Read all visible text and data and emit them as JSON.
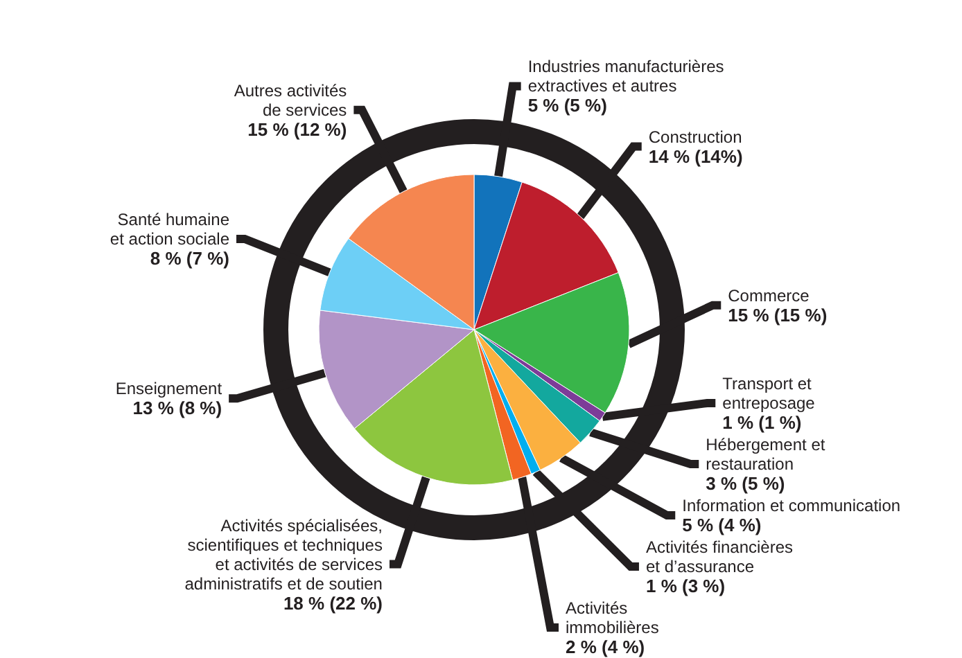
{
  "chart_data": {
    "type": "pie",
    "categories": [
      "Industries manufacturières\nextractives et autres",
      "Construction",
      "Commerce",
      "Transport et\nentreposage",
      "Hébergement et\nrestauration",
      "Information et communication",
      "Activités financières\net d’assurance",
      "Activités\nimmobilières",
      "Activités spécialisées,\nscientifiques et techniques\net activités de services\nadministratifs et de soutien",
      "Enseignement",
      "Santé humaine\net action sociale",
      "Autres activités\nde services"
    ],
    "values": [
      5,
      14,
      15,
      1,
      3,
      5,
      1,
      2,
      18,
      13,
      8,
      15
    ],
    "value_labels": [
      "5 % (5 %)",
      "14 % (14%)",
      "15 % (15 %)",
      "1 % (1 %)",
      "3 % (5 %)",
      "5 % (4 %)",
      "1 % (3 %)",
      "2 % (4 %)",
      "18 % (22 %)",
      "13 % (8 %)",
      "8 % (7 %)",
      "15 % (12 %)"
    ],
    "colors": [
      "#1273bb",
      "#be1e2d",
      "#39b54a",
      "#7d3c98",
      "#13a89e",
      "#fbb040",
      "#00aeef",
      "#f26522",
      "#8dc63f",
      "#b294c7",
      "#6dcff6",
      "#f58650"
    ]
  }
}
